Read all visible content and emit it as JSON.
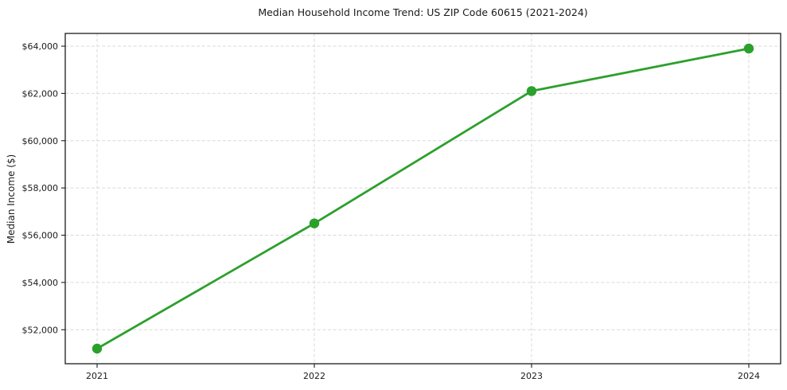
{
  "chart_data": {
    "type": "line",
    "title": "Median Household Income Trend: US ZIP Code 60615 (2021-2024)",
    "xlabel": "",
    "ylabel": "Median Income ($)",
    "x": [
      2021,
      2022,
      2023,
      2024
    ],
    "xtick_labels": [
      "2021",
      "2022",
      "2023",
      "2024"
    ],
    "series": [
      {
        "name": "Median Household Income",
        "values": [
          51200,
          56500,
          62100,
          63900
        ],
        "color": "#2ca02c",
        "marker": "circle"
      }
    ],
    "ylim": [
      50560,
      64540
    ],
    "yticks": [
      52000,
      54000,
      56000,
      58000,
      60000,
      62000,
      64000
    ],
    "ytick_labels": [
      "$52,000",
      "$54,000",
      "$56,000",
      "$58,000",
      "$60,000",
      "$62,000",
      "$64,000"
    ],
    "grid": true,
    "grid_style": "dashed",
    "legend_position": "none",
    "colors": {
      "line": "#2ca02c",
      "grid": "#d9d9d9",
      "axis": "#1c1c1c",
      "text": "#1a1a1a",
      "background": "#ffffff"
    }
  }
}
